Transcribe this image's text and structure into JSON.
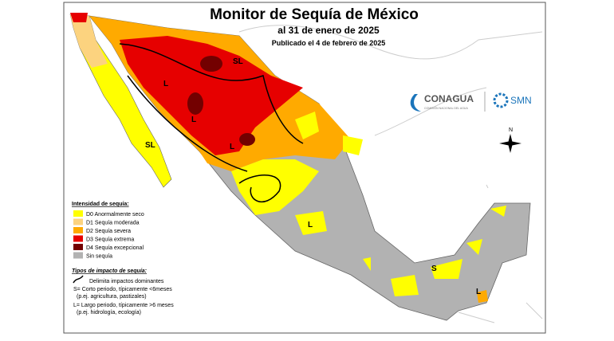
{
  "header": {
    "title": "Monitor de Sequía de México",
    "subtitle": "al 31 de enero de 2025",
    "published": "Publicado el 4 de febrero de 2025"
  },
  "logos": {
    "conagua": "CONAGUA",
    "conagua_sub": "COMISIÓN NACIONAL DEL AGUA",
    "smn": "SMN"
  },
  "legend": {
    "title": "Intensidad de sequía:",
    "items": [
      {
        "label": "D0 Anormalmente seco",
        "color": "#ffff00"
      },
      {
        "label": "D1 Sequía moderada",
        "color": "#fcd37f"
      },
      {
        "label": "D2 Sequía severa",
        "color": "#ffaa00"
      },
      {
        "label": "D3 Sequía extrema",
        "color": "#e60000"
      },
      {
        "label": "D4 Sequía excepcional",
        "color": "#730000"
      },
      {
        "label": "Sin sequía",
        "color": "#b2b2b2"
      }
    ]
  },
  "impact": {
    "title": "Tipos de impacto de sequía:",
    "line": "Delimita impactos dominantes",
    "s": "S= Corto periodo, típicamente <6meses",
    "s_ex": "(p.ej. agricultura, pastizales)",
    "l": "L= Largo periodo, típicamente >6 meses",
    "l_ex": "(p.ej. hidrología, ecología)"
  },
  "map_labels": [
    "SL",
    "L",
    "SL",
    "L",
    "L",
    "L",
    "S",
    "L"
  ],
  "compass": "N"
}
